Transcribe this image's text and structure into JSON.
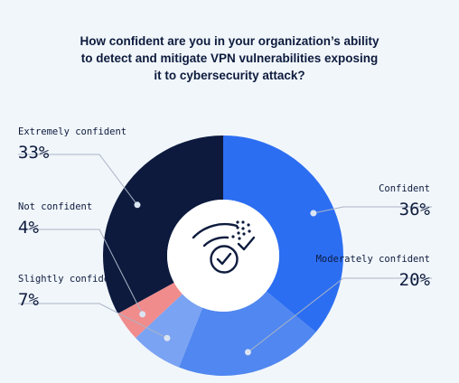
{
  "title_lines": [
    "How confident are you in your organization’s ability",
    "to detect and mitigate VPN vulnerabilities exposing",
    "it to cybersecurity attack?"
  ],
  "icon": "shield-check-wifi-icon",
  "colors": {
    "background": "#f1f6fb",
    "text": "#0d1b3d",
    "leader": "#aab4c4"
  },
  "chart_data": {
    "type": "pie",
    "variant": "donut",
    "title": "How confident are you in your organization’s ability to detect and mitigate VPN vulnerabilities exposing it to cybersecurity attack?",
    "categories": [
      "Confident",
      "Moderately confident",
      "Slightly confident",
      "Not confident",
      "Extremely confident"
    ],
    "values": [
      36,
      20,
      7,
      4,
      33
    ],
    "value_labels": [
      "36%",
      "20%",
      "7%",
      "4%",
      "33%"
    ],
    "colors": [
      "#2c6ef2",
      "#5087f0",
      "#7ba3f3",
      "#f08c8c",
      "#0d1a3e"
    ],
    "slices": [
      {
        "label": "Confident",
        "value": 36,
        "pct_label": "36%",
        "color": "#2c6ef2"
      },
      {
        "label": "Moderately confident",
        "value": 20,
        "pct_label": "20%",
        "color": "#5087f0"
      },
      {
        "label": "Slightly confident",
        "value": 7,
        "pct_label": "7%",
        "color": "#7ba3f3"
      },
      {
        "label": "Not confident",
        "value": 4,
        "pct_label": "4%",
        "color": "#f08c8c"
      },
      {
        "label": "Extremely confident",
        "value": 33,
        "pct_label": "33%",
        "color": "#0d1a3e"
      }
    ]
  }
}
